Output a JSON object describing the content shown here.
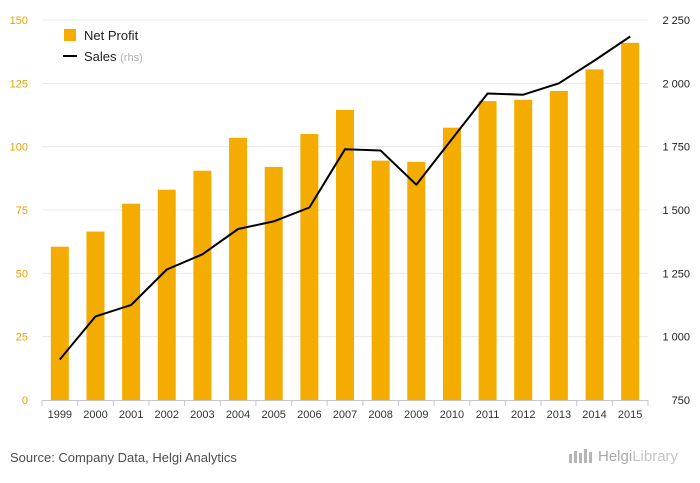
{
  "chart_data": {
    "type": "bar",
    "categories": [
      "1999",
      "2000",
      "2001",
      "2002",
      "2003",
      "2004",
      "2005",
      "2006",
      "2007",
      "2008",
      "2009",
      "2010",
      "2011",
      "2012",
      "2013",
      "2014",
      "2015"
    ],
    "series": [
      {
        "name": "Net Profit",
        "type": "bar",
        "axis": "left",
        "color": "#f5ac00",
        "values": [
          60.5,
          66.5,
          77.5,
          83.0,
          90.5,
          103.5,
          92.0,
          105.0,
          114.5,
          94.5,
          94.0,
          107.5,
          118.0,
          118.5,
          122.0,
          130.5,
          141.0
        ]
      },
      {
        "name": "Sales",
        "name_suffix": "(rhs)",
        "type": "line",
        "axis": "right",
        "color": "#000000",
        "values": [
          910,
          1080,
          1125,
          1265,
          1325,
          1425,
          1455,
          1510,
          1740,
          1735,
          1600,
          1780,
          1960,
          1955,
          2000,
          2090,
          2185
        ]
      }
    ],
    "y_left": {
      "ylim": [
        0,
        150
      ],
      "ticks": [
        "0",
        "25",
        "50",
        "75",
        "100",
        "125",
        "150"
      ]
    },
    "y_right": {
      "ylim": [
        750,
        2250
      ],
      "ticks": [
        "750",
        "1 000",
        "1 250",
        "1 500",
        "1 750",
        "2 000",
        "2 250"
      ]
    },
    "grid": true,
    "legend_position": "top-left",
    "colors": {
      "bar": "#f5ac00",
      "line": "#000000",
      "left_tick": "#e8a200",
      "grid": "#e8e8e8"
    }
  },
  "footer": {
    "source": "Source: Company Data, Helgi Analytics",
    "logo_prefix": "Helgi",
    "logo_suffix": "Library"
  }
}
